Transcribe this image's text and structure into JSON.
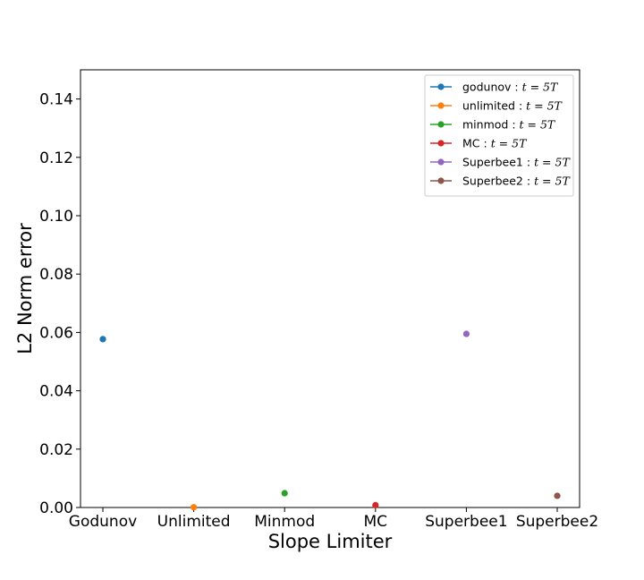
{
  "chart_data": {
    "type": "scatter",
    "title": "",
    "xlabel": "Slope Limiter",
    "ylabel": "L2 Norm error",
    "categories": [
      "Godunov",
      "Unlimited",
      "Minmod",
      "MC",
      "Superbee1",
      "Superbee2"
    ],
    "ylim": [
      0.0,
      0.15
    ],
    "yticks": [
      "0.00",
      "0.02",
      "0.04",
      "0.06",
      "0.08",
      "0.10",
      "0.12",
      "0.14"
    ],
    "grid": false,
    "legend_position": "top-right",
    "series": [
      {
        "name": "godunov",
        "time": "t = 5T",
        "color": "#1f77b4",
        "x": "Godunov",
        "y": 0.0577
      },
      {
        "name": "unlimited",
        "time": "t = 5T",
        "color": "#ff7f0e",
        "x": "Unlimited",
        "y": 0.0001
      },
      {
        "name": "minmod",
        "time": "t = 5T",
        "color": "#2ca02c",
        "x": "Minmod",
        "y": 0.0049
      },
      {
        "name": "MC",
        "time": "t = 5T",
        "color": "#d62728",
        "x": "MC",
        "y": 0.0008
      },
      {
        "name": "Superbee1",
        "time": "t = 5T",
        "color": "#9467bd",
        "x": "Superbee1",
        "y": 0.0595
      },
      {
        "name": "Superbee2",
        "time": "t = 5T",
        "color": "#8c564b",
        "x": "Superbee2",
        "y": 0.004
      }
    ]
  }
}
